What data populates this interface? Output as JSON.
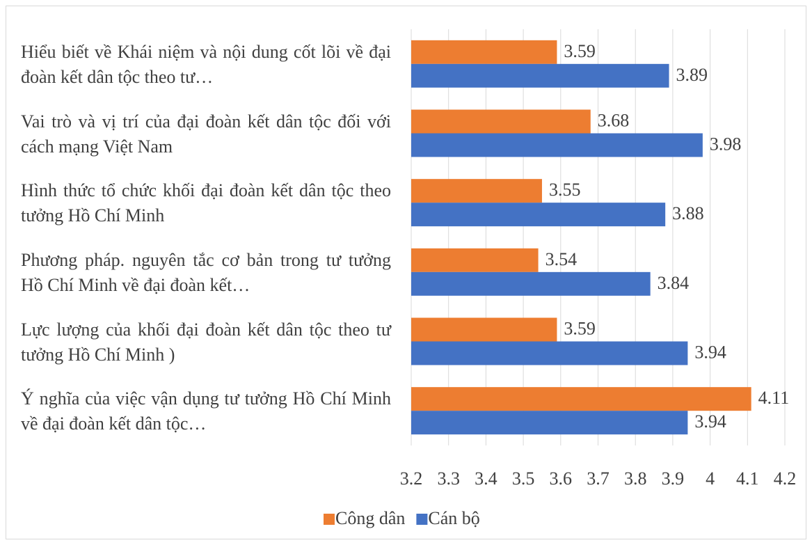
{
  "chart_data": {
    "type": "barh",
    "categories": [
      "Hiểu biết về Khái niệm và nội dung cốt lõi về đại đoàn kết dân tộc theo tư…",
      "Vai trò và vị trí của đại đoàn kết dân tộc đối với cách mạng Việt Nam",
      "Hình thức tổ chức khối đại đoàn kết dân tộc theo tưởng Hồ Chí Minh",
      "Phương pháp. nguyên tắc cơ bản trong tư tưởng Hồ Chí Minh về đại đoàn kết…",
      "Lực lượng của khối đại đoàn kết dân tộc theo tư tưởng Hồ Chí Minh )",
      "Ý nghĩa của việc vận dụng  tư tưởng Hồ Chí Minh về đại đoàn kết dân tộc…"
    ],
    "series": [
      {
        "name": "Công dân",
        "color": "#ed7d31",
        "values": [
          3.59,
          3.68,
          3.55,
          3.54,
          3.59,
          4.11
        ]
      },
      {
        "name": "Cán bộ",
        "color": "#4472c4",
        "values": [
          3.89,
          3.98,
          3.88,
          3.84,
          3.94,
          3.94
        ]
      }
    ],
    "xlim": [
      3.2,
      4.2
    ],
    "xticks": [
      3.2,
      3.3,
      3.4,
      3.5,
      3.6,
      3.7,
      3.8,
      3.9,
      4,
      4.1,
      4.2
    ],
    "grid": true,
    "legend": "bottom"
  }
}
